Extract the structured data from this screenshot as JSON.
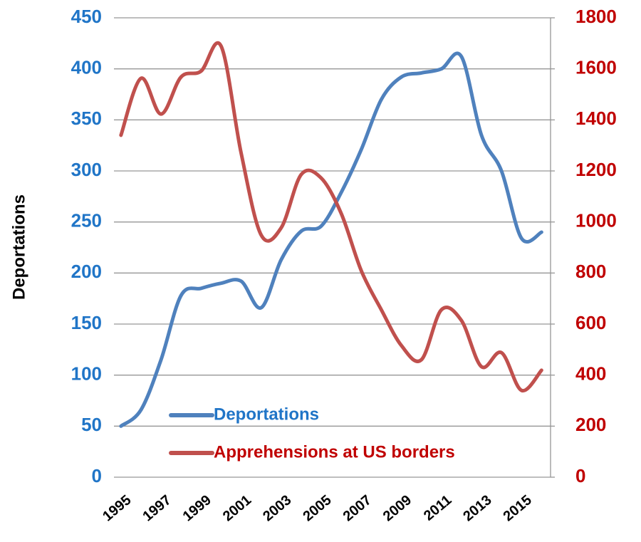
{
  "chart_data": {
    "type": "line",
    "ylabel": "Deportations",
    "x": [
      1995,
      1996,
      1997,
      1998,
      1999,
      2000,
      2001,
      2002,
      2003,
      2004,
      2005,
      2006,
      2007,
      2008,
      2009,
      2010,
      2011,
      2012,
      2013,
      2014,
      2015,
      2016
    ],
    "xlim": [
      1994.65,
      2016.45
    ],
    "xticks": [
      1995,
      1997,
      1999,
      2001,
      2003,
      2005,
      2007,
      2009,
      2011,
      2013,
      2015
    ],
    "ylim": [
      0,
      450
    ],
    "yticks": [
      0,
      50,
      100,
      150,
      200,
      250,
      300,
      350,
      400,
      450
    ],
    "y2lim": [
      0,
      1800
    ],
    "y2ticks": [
      0,
      200,
      400,
      600,
      800,
      1000,
      1200,
      1400,
      1600,
      1800
    ],
    "ycolor": "#2075c7",
    "y2color": "#c00000",
    "grid": true,
    "legend": "bottom",
    "series": [
      {
        "name": "Deportations",
        "color": "#4f81bd",
        "values": [
          50,
          66,
          115,
          178,
          185,
          190,
          192,
          166,
          213,
          241,
          246,
          279,
          321,
          370,
          392,
          396,
          400,
          412,
          335,
          300,
          234,
          240
        ]
      },
      {
        "name": "Apprehensions at US borders",
        "color": "#c0504d",
        "axis": "y2",
        "values": [
          1340,
          1563,
          1423,
          1568,
          1591,
          1689,
          1270,
          949,
          977,
          1186,
          1172,
          1033,
          809,
          656,
          516,
          460,
          656,
          614,
          433,
          488,
          340,
          419
        ]
      }
    ]
  }
}
